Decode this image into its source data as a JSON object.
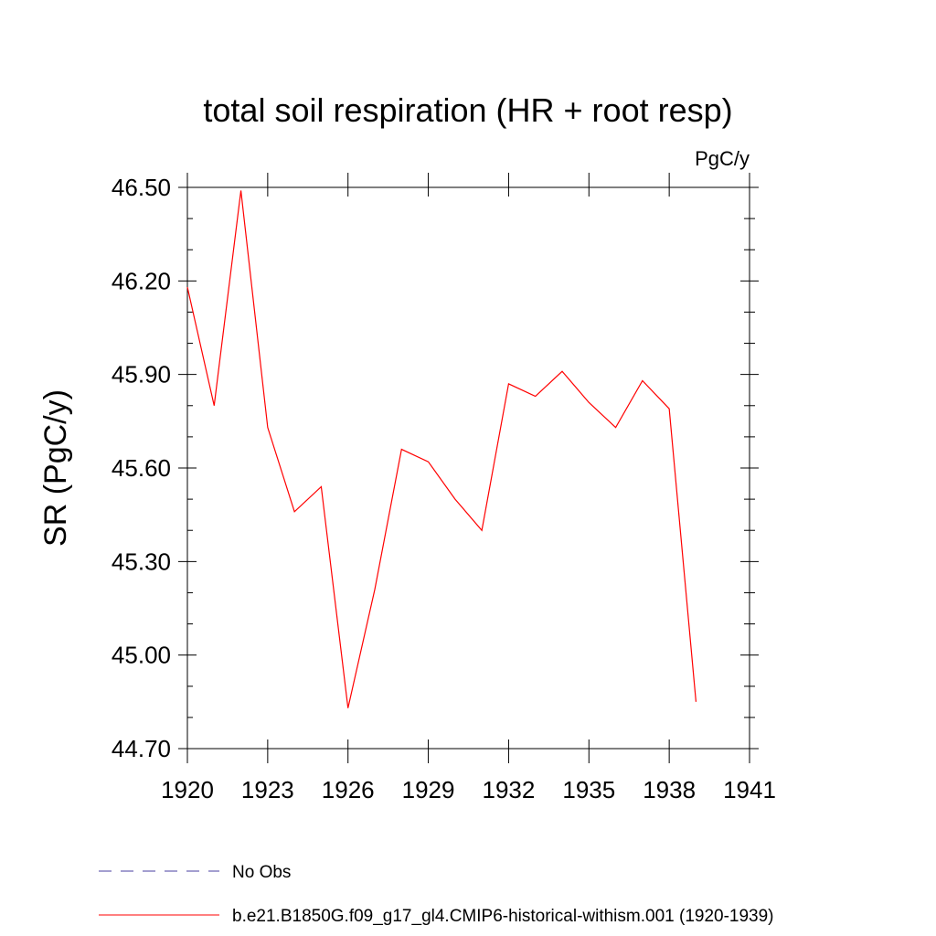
{
  "chart_data": {
    "type": "line",
    "title": "total soil respiration (HR + root resp)",
    "units_label": "PgC/y",
    "ylabel": "SR  (PgC/y)",
    "xlabel": "",
    "xlim": [
      1920,
      1941
    ],
    "ylim": [
      44.7,
      46.5
    ],
    "x_ticks": [
      1920,
      1923,
      1926,
      1929,
      1932,
      1935,
      1938,
      1941
    ],
    "x_tick_labels": [
      "1920",
      "1923",
      "1926",
      "1929",
      "1932",
      "1935",
      "1938",
      "1941"
    ],
    "y_ticks": [
      44.7,
      45.0,
      45.3,
      45.6,
      45.9,
      46.2,
      46.5
    ],
    "y_tick_labels": [
      "44.70",
      "45.00",
      "45.30",
      "45.60",
      "45.90",
      "46.20",
      "46.50"
    ],
    "y_minor_step": 0.1,
    "x_minor_step": 1,
    "grid": false,
    "legend_position": "bottom-left",
    "series": [
      {
        "name": "b.e21.B1850G.f09_g17_gl4.CMIP6-historical-withism.001 (1920-1939)",
        "color": "#ff0000",
        "style": "solid",
        "x": [
          1920,
          1921,
          1922,
          1923,
          1924,
          1925,
          1926,
          1927,
          1928,
          1929,
          1930,
          1931,
          1932,
          1933,
          1934,
          1935,
          1936,
          1937,
          1938,
          1939
        ],
        "y": [
          46.18,
          45.8,
          46.49,
          45.73,
          45.46,
          45.54,
          44.83,
          45.21,
          45.66,
          45.62,
          45.5,
          45.4,
          45.87,
          45.83,
          45.91,
          45.81,
          45.73,
          45.88,
          45.79,
          44.85
        ]
      },
      {
        "name": "No Obs",
        "color": "#4a3fa0",
        "style": "dashed",
        "x": [],
        "y": []
      }
    ]
  }
}
